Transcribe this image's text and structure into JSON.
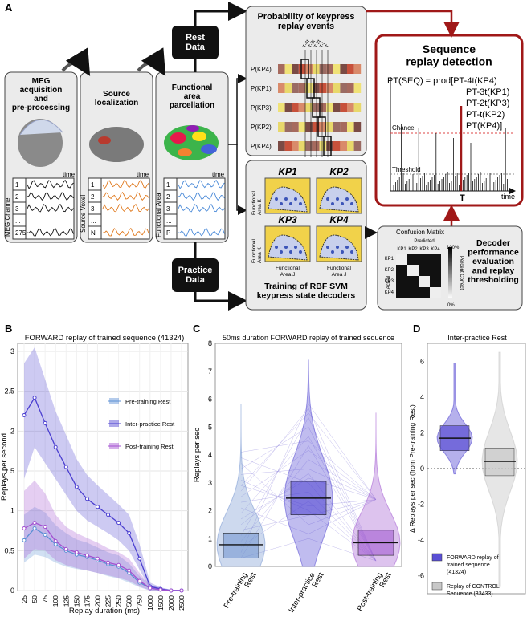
{
  "panel_a": {
    "label": "A",
    "steps": [
      {
        "title": "MEG\nacquisition\nand\npre-processing",
        "axis": "MEG Channel",
        "rows": [
          "1",
          "2",
          "3",
          "...",
          "275"
        ],
        "time": "time"
      },
      {
        "title": "Source\nlocalization",
        "axis": "Source Voxel",
        "rows": [
          "1",
          "2",
          "3",
          "...",
          "N"
        ],
        "time": "time"
      },
      {
        "title": "Functional\narea\nparcellation",
        "axis": "Functional Area",
        "rows": [
          "1",
          "2",
          "3",
          "...",
          "P"
        ],
        "time": "time"
      }
    ],
    "rest_data": "Rest\nData",
    "practice_data": "Practice\nData",
    "prob_title": "Probability of keypress\nreplay events",
    "prob_rows": [
      "P(KP4)",
      "P(KP1)",
      "P(KP3)",
      "P(KP2)",
      "P(KP4)"
    ],
    "time_ticks": [
      "T-4t",
      "T-3t",
      "T-2t",
      "T-t",
      "T"
    ],
    "svm_labels": [
      "KP1",
      "KP2",
      "KP3",
      "KP4"
    ],
    "svm_axis_y": "Functional\nArea K",
    "svm_axis_x": "Functional\nArea J",
    "svm_title": "Training of RBF SVM\nkeypress state decoders",
    "seq_title": "Sequence\nreplay detection",
    "formula": [
      "PT(SEQ) = prod[PT-4t(KP4)",
      "PT-3t(KP1)",
      "PT-2t(KP3)",
      "PT-t(KP2)",
      "PT(KP4)]"
    ],
    "chance": "Chance",
    "threshold": "Threshold",
    "time_label": "time",
    "t_label": "T",
    "confusion_title": "Confusion Matrix",
    "predicted": "Predicted",
    "actual": "Actual",
    "kp_short": [
      "KP1",
      "KP2",
      "KP3",
      "KP4"
    ],
    "pct_top": "100%",
    "pct_bottom": "0%",
    "pct_label": "Percent Correct",
    "decoder_text": "Decoder\nperformance\nevaluation\nand replay\nthresholding",
    "colors": {
      "accent_red": "#a01818",
      "dark_box": "#111111",
      "panel_bg": "#ebebeb"
    }
  },
  "panel_b": {
    "label": "B",
    "chart_data": {
      "type": "line",
      "title": "FORWARD replay of trained sequence (41324)",
      "xlabel": "Replay duration (ms)",
      "ylabel": "Replays per second",
      "categories": [
        "25",
        "50",
        "75",
        "100",
        "125",
        "150",
        "175",
        "200",
        "225",
        "250",
        "500",
        "750",
        "1000",
        "1500",
        "2000",
        "2500"
      ],
      "ylim": [
        0,
        3
      ],
      "yticks": [
        "0",
        "0.5",
        "1",
        "1.5",
        "2",
        "2.5",
        "3"
      ],
      "legend_position": "right",
      "series": [
        {
          "name": "Pre-training Rest",
          "color": "#5a8fd4",
          "values": [
            0.63,
            0.78,
            0.7,
            0.58,
            0.5,
            0.45,
            0.42,
            0.38,
            0.33,
            0.3,
            0.22,
            0.1,
            0.03,
            0.01,
            0.0,
            0.0
          ],
          "ci_low": [
            0.35,
            0.45,
            0.42,
            0.35,
            0.3,
            0.27,
            0.25,
            0.22,
            0.18,
            0.15,
            0.1,
            0.04,
            0.0,
            0.0,
            0.0,
            0.0
          ],
          "ci_high": [
            0.95,
            1.05,
            0.98,
            0.82,
            0.72,
            0.64,
            0.6,
            0.54,
            0.48,
            0.44,
            0.34,
            0.18,
            0.07,
            0.03,
            0.01,
            0.01
          ]
        },
        {
          "name": "Inter-practice Rest",
          "color": "#4b3fd0",
          "values": [
            2.2,
            2.42,
            2.1,
            1.8,
            1.55,
            1.3,
            1.15,
            1.05,
            0.95,
            0.85,
            0.72,
            0.4,
            0.05,
            0.02,
            0.0,
            0.0
          ],
          "ci_low": [
            1.4,
            1.8,
            1.6,
            1.4,
            1.2,
            1.0,
            0.88,
            0.8,
            0.72,
            0.63,
            0.5,
            0.26,
            0.02,
            0.0,
            0.0,
            0.0
          ],
          "ci_high": [
            2.85,
            3.05,
            2.65,
            2.25,
            1.95,
            1.65,
            1.45,
            1.32,
            1.2,
            1.08,
            0.95,
            0.58,
            0.1,
            0.04,
            0.01,
            0.01
          ]
        },
        {
          "name": "Post-training Rest",
          "color": "#a24fd0",
          "values": [
            0.78,
            0.85,
            0.8,
            0.62,
            0.52,
            0.48,
            0.44,
            0.4,
            0.35,
            0.32,
            0.25,
            0.12,
            0.03,
            0.01,
            0.0,
            0.0
          ],
          "ci_low": [
            0.4,
            0.52,
            0.5,
            0.38,
            0.32,
            0.28,
            0.25,
            0.22,
            0.19,
            0.16,
            0.12,
            0.05,
            0.0,
            0.0,
            0.0,
            0.0
          ],
          "ci_high": [
            1.25,
            1.38,
            1.22,
            0.95,
            0.8,
            0.72,
            0.66,
            0.6,
            0.53,
            0.48,
            0.4,
            0.22,
            0.07,
            0.03,
            0.01,
            0.01
          ]
        }
      ]
    }
  },
  "panel_c": {
    "label": "C",
    "chart_data": {
      "type": "violin",
      "title": "50ms duration FORWARD replay of trained sequence",
      "ylabel": "Replays per sec",
      "categories": [
        "Pre-training\nRest",
        "Inter-practice\nRest",
        "Post-training\nRest"
      ],
      "ylim": [
        0,
        8
      ],
      "yticks": [
        "0",
        "1",
        "2",
        "3",
        "4",
        "5",
        "6",
        "7",
        "8"
      ],
      "series": [
        {
          "name": "Pre-training Rest",
          "color": "#6f92cf",
          "mean": 0.78,
          "ci_low": 0.3,
          "ci_high": 1.2,
          "max": 5.8,
          "min": 0.0
        },
        {
          "name": "Inter-practice Rest",
          "color": "#4b3fd0",
          "mean": 2.45,
          "ci_low": 1.85,
          "ci_high": 3.05,
          "max": 7.4,
          "min": 0.0
        },
        {
          "name": "Post-training Rest",
          "color": "#9d52cf",
          "mean": 0.85,
          "ci_low": 0.4,
          "ci_high": 1.3,
          "max": 5.5,
          "min": 0.0
        }
      ]
    }
  },
  "panel_d": {
    "label": "D",
    "chart_data": {
      "type": "violin",
      "title": "Inter-practice Rest",
      "ylabel": "Δ Replays per sec (from Pre-training Rest)",
      "ylim": [
        -7,
        7
      ],
      "yticks": [
        "6",
        "4",
        "2",
        "0",
        "-2",
        "-4",
        "-6"
      ],
      "series": [
        {
          "name": "FORWARD replay of trained sequence (41324)",
          "color": "#5a4fd4",
          "mean": 1.7,
          "ci_low": 1.0,
          "ci_high": 2.4,
          "max": 5.9,
          "min": -0.3
        },
        {
          "name": "Replay of CONTROL Sequence (33433)",
          "color": "#c8c8c8",
          "mean": 0.4,
          "ci_low": -0.4,
          "ci_high": 1.15,
          "max": 6.5,
          "min": -6.6
        }
      ]
    },
    "legend": [
      "FORWARD replay of\ntrained sequence\n(41324)",
      "Replay of CONTROL\nSequence (33433)"
    ]
  }
}
